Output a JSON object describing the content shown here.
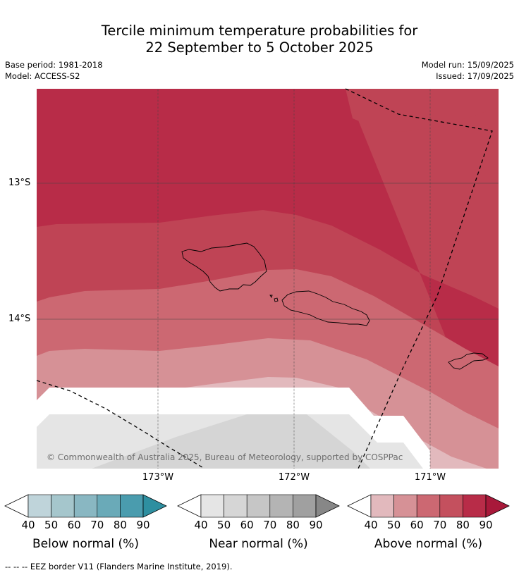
{
  "title": {
    "line1": "Tercile minimum temperature probabilities for",
    "line2": "22 September to 5 October 2025"
  },
  "meta": {
    "base_period": "Base period: 1981-2018",
    "model": "Model: ACCESS-S2",
    "model_run": "Model run: 15/09/2025",
    "issued": "Issued: 17/09/2025"
  },
  "map": {
    "lat_labels": [
      "13°S",
      "14°S"
    ],
    "lon_labels": [
      "173°W",
      "172°W",
      "171°W"
    ],
    "copyright": "© Commonwealth of Australia 2025, Bureau of Meteorology, supported by COSPPac",
    "fill_colors": {
      "above_90": "#b82c48",
      "above_80": "#bf4455",
      "above_70": "#cc6872",
      "above_60": "#d69196",
      "above_50": "#e2b9bd",
      "near_50": "#e5e5e5",
      "near_60": "#d5d5d5"
    },
    "eez_line_color": "#000000"
  },
  "colorbars": [
    {
      "name": "below",
      "label": "Below normal (%)",
      "ticks": [
        "40",
        "50",
        "60",
        "70",
        "80",
        "90"
      ],
      "colors": [
        "#bfd4da",
        "#a5c6cc",
        "#89b7c2",
        "#6aaab8",
        "#4a9cae",
        "#2e8fa0"
      ]
    },
    {
      "name": "near",
      "label": "Near normal (%)",
      "ticks": [
        "40",
        "50",
        "60",
        "70",
        "80",
        "90"
      ],
      "colors": [
        "#e5e5e5",
        "#d6d6d6",
        "#c6c6c6",
        "#b4b4b4",
        "#a0a0a0",
        "#878787"
      ]
    },
    {
      "name": "above",
      "label": "Above normal (%)",
      "ticks": [
        "40",
        "50",
        "60",
        "70",
        "80",
        "90"
      ],
      "colors": [
        "#e2b9bd",
        "#d69196",
        "#cc6872",
        "#c4505e",
        "#b82c48",
        "#a8193a"
      ]
    }
  ],
  "footnote": "--  --  -- EEZ border V11 (Flanders Marine Institute, 2019)."
}
